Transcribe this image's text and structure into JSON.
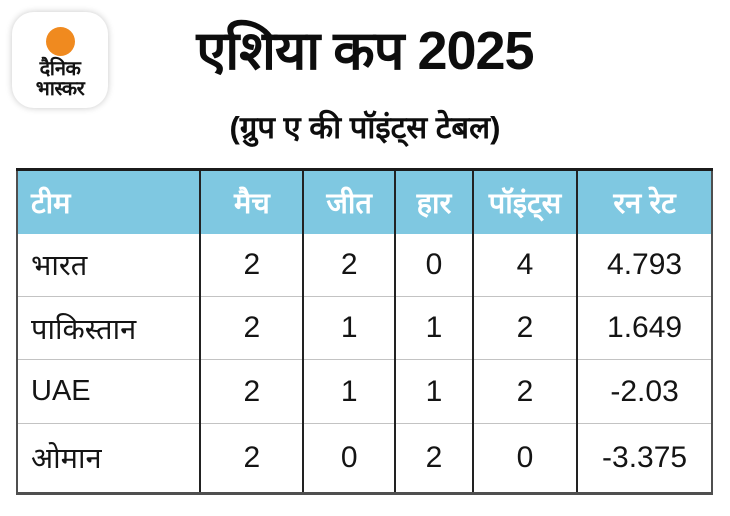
{
  "logo": {
    "line1": "दैनिक",
    "line2": "भास्कर",
    "accent_color": "#f08a1f"
  },
  "header": {
    "title": "एशिया कप 2025",
    "subtitle": "(ग्रुप ए की पॉइंट्स टेबल)"
  },
  "table": {
    "header_bg": "#7fc8e1",
    "columns": [
      "टीम",
      "मैच",
      "जीत",
      "हार",
      "पॉइंट्स",
      "रन रेट"
    ],
    "rows": [
      {
        "team": "भारत",
        "matches": "2",
        "wins": "2",
        "losses": "0",
        "points": "4",
        "run_rate": "4.793"
      },
      {
        "team": "पाकिस्तान",
        "matches": "2",
        "wins": "1",
        "losses": "1",
        "points": "2",
        "run_rate": "1.649"
      },
      {
        "team": "UAE",
        "matches": "2",
        "wins": "1",
        "losses": "1",
        "points": "2",
        "run_rate": "-2.03"
      },
      {
        "team": "ओमान",
        "matches": "2",
        "wins": "0",
        "losses": "2",
        "points": "0",
        "run_rate": "-3.375"
      }
    ]
  },
  "chart_data": {
    "type": "table",
    "title": "एशिया कप 2025",
    "subtitle": "(ग्रुप ए की पॉइंट्स टेबल)",
    "columns": [
      "टीम",
      "मैच",
      "जीत",
      "हार",
      "पॉइंट्स",
      "रन रेट"
    ],
    "rows": [
      [
        "भारत",
        2,
        2,
        0,
        4,
        4.793
      ],
      [
        "पाकिस्तान",
        2,
        1,
        1,
        2,
        1.649
      ],
      [
        "UAE",
        2,
        1,
        1,
        2,
        -2.03
      ],
      [
        "ओमान",
        2,
        0,
        2,
        0,
        -3.375
      ]
    ],
    "layout_hints": {
      "header_background": "#7fc8e1",
      "header_text_color": "#ffffff",
      "first_column_align": "left",
      "numeric_columns_align": "center"
    }
  }
}
